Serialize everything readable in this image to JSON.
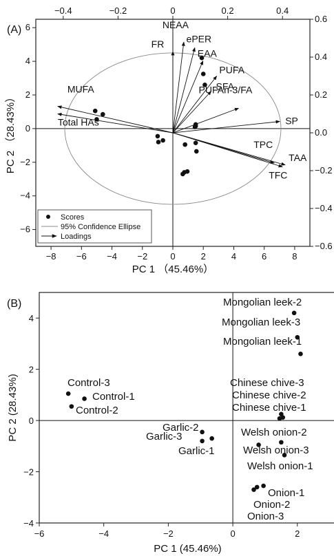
{
  "chart_data": [
    {
      "panel": "(A)",
      "type": "scatter",
      "title": "",
      "xlabel": "PC 1 （45.46%）",
      "ylabel": "PC 2 （28.43%）",
      "xlim": [
        -9,
        9
      ],
      "ylim": [
        -7,
        6.5
      ],
      "xticks": [
        -8,
        -6,
        -4,
        -2,
        0,
        2,
        4,
        6,
        8
      ],
      "yticks": [
        -6,
        -4,
        -2,
        0,
        2,
        4,
        6
      ],
      "secondary_xlim": [
        -0.5,
        0.5
      ],
      "secondary_ylim": [
        -0.6,
        0.6
      ],
      "secondary_xticks": [
        -0.4,
        -0.2,
        0,
        0.2,
        0.4
      ],
      "secondary_yticks": [
        -0.6,
        -0.4,
        -0.2,
        0.0,
        0.2,
        0.4,
        0.6
      ],
      "confidence_ellipse": {
        "center": [
          0,
          0
        ],
        "radii": [
          7.1,
          4.5
        ]
      },
      "scores": [
        {
          "x": -5.1,
          "y": 1.05
        },
        {
          "x": -4.6,
          "y": 0.85
        },
        {
          "x": -5.0,
          "y": 0.55
        },
        {
          "x": -1.0,
          "y": -0.45
        },
        {
          "x": -0.65,
          "y": -0.7
        },
        {
          "x": -0.95,
          "y": -0.8
        },
        {
          "x": 0.8,
          "y": -0.95
        },
        {
          "x": 1.5,
          "y": -0.85
        },
        {
          "x": 1.55,
          "y": -1.35
        },
        {
          "x": 0.75,
          "y": -2.6
        },
        {
          "x": 0.65,
          "y": -2.7
        },
        {
          "x": 0.95,
          "y": -2.55
        },
        {
          "x": 1.45,
          "y": 0.1
        },
        {
          "x": 1.5,
          "y": 0.15
        },
        {
          "x": 1.5,
          "y": 0.25
        },
        {
          "x": 1.9,
          "y": 4.2
        },
        {
          "x": 2.0,
          "y": 3.25
        },
        {
          "x": 2.1,
          "y": 2.6
        }
      ],
      "loadings": [
        {
          "label": "NEAA",
          "x": 0.04,
          "y": 0.48
        },
        {
          "label": "ePER",
          "x": 0.08,
          "y": 0.45
        },
        {
          "label": "FR",
          "x": 0.0,
          "y": 0.43
        },
        {
          "label": "EAA",
          "x": 0.11,
          "y": 0.38
        },
        {
          "label": "PUFA",
          "x": 0.16,
          "y": 0.3
        },
        {
          "label": "SFA",
          "x": 0.14,
          "y": 0.22
        },
        {
          "label": "PUFAn-3/FA",
          "x": 0.24,
          "y": 0.13
        },
        {
          "label": "SP",
          "x": 0.39,
          "y": 0.06
        },
        {
          "label": "TPC",
          "x": 0.37,
          "y": -0.16
        },
        {
          "label": "TAA",
          "x": 0.41,
          "y": -0.17
        },
        {
          "label": "TFC",
          "x": 0.4,
          "y": -0.18
        },
        {
          "label": "MUFA",
          "x": -0.42,
          "y": 0.14
        },
        {
          "label": "Total HAs",
          "x": -0.42,
          "y": 0.1
        }
      ],
      "legend": {
        "placement": "bottom-left",
        "entries": [
          "Scores",
          "95% Confidence Ellipse",
          "Loadings"
        ]
      }
    },
    {
      "panel": "(B)",
      "type": "scatter",
      "title": "",
      "xlabel": "PC 1 (45.46%)",
      "ylabel": "PC 2 (28.43%)",
      "xlim": [
        -6,
        3.2
      ],
      "ylim": [
        -4,
        5
      ],
      "xticks": [
        -6,
        -4,
        -2,
        0,
        2
      ],
      "yticks": [
        -4,
        -2,
        0,
        2,
        4
      ],
      "points": [
        {
          "label": "Mongolian leek-2",
          "x": 1.9,
          "y": 4.2
        },
        {
          "label": "Mongolian leek-3",
          "x": 2.0,
          "y": 3.25
        },
        {
          "label": "Mongolian leek-1",
          "x": 2.1,
          "y": 2.6
        },
        {
          "label": "Chinese chive-3",
          "x": 1.5,
          "y": 0.25
        },
        {
          "label": "Chinese chive-2",
          "x": 1.55,
          "y": 0.12
        },
        {
          "label": "Chinese chive-1",
          "x": 1.45,
          "y": 0.08
        },
        {
          "label": "Control-3",
          "x": -5.1,
          "y": 1.05
        },
        {
          "label": "Control-1",
          "x": -4.6,
          "y": 0.85
        },
        {
          "label": "Control-2",
          "x": -5.0,
          "y": 0.55
        },
        {
          "label": "Garlic-2",
          "x": -0.95,
          "y": -0.45
        },
        {
          "label": "Garlic-3",
          "x": -0.95,
          "y": -0.8
        },
        {
          "label": "Garlic-1",
          "x": -0.65,
          "y": -0.7
        },
        {
          "label": "Welsh onion-2",
          "x": 1.5,
          "y": -0.85
        },
        {
          "label": "Welsh onion-3",
          "x": 0.8,
          "y": -0.95
        },
        {
          "label": "Welsh onion-1",
          "x": 1.6,
          "y": -1.35
        },
        {
          "label": "Onion-1",
          "x": 0.95,
          "y": -2.55
        },
        {
          "label": "Onion-2",
          "x": 0.75,
          "y": -2.6
        },
        {
          "label": "Onion-3",
          "x": 0.65,
          "y": -2.7
        }
      ]
    }
  ]
}
